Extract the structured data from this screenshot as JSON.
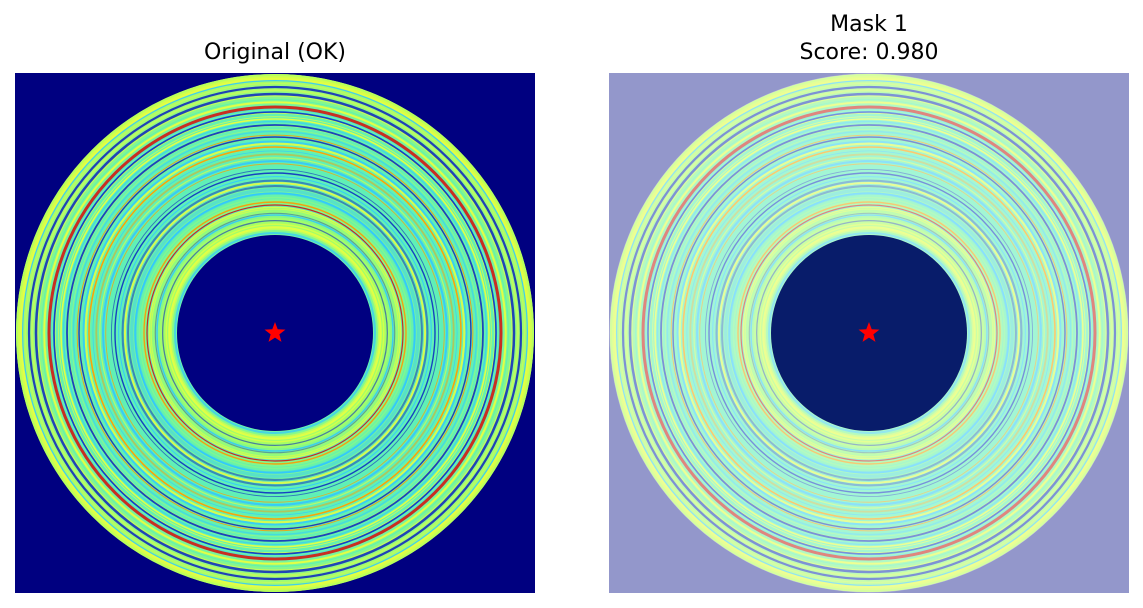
{
  "panels": [
    {
      "title_lines": [
        "Original (OK)"
      ],
      "background_color": "#000080",
      "inner_hole_color": "#000080",
      "overlay": false,
      "marker": "star",
      "marker_color": "#ff0000"
    },
    {
      "title_lines": [
        "Mask 1",
        "Score: 0.980"
      ],
      "background_color": "#9397cb",
      "inner_hole_color": "#081c6a",
      "overlay": true,
      "marker": "star",
      "marker_color": "#ff0000"
    }
  ],
  "colors": {
    "ring_base": "#5af0b4",
    "ring_outer_edge": "#b8ff5a",
    "ring_red": "#d41a10",
    "ring_orange": "#ff9a00",
    "ring_yellow": "#e8ff40",
    "ring_blue": "#1030c0",
    "ring_cyan": "#30c8ff"
  }
}
